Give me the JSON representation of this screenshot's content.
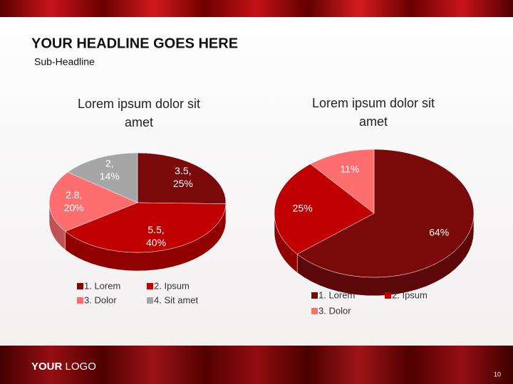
{
  "slide": {
    "headline": "YOUR HEADLINE GOES HERE",
    "subheadline": "Sub-Headline",
    "logo_your": "YOUR",
    "logo_logo": "LOGO",
    "page_number": "10"
  },
  "chart_data": [
    {
      "type": "pie",
      "title": "Lorem ipsum dolor sit amet",
      "categories": [
        "1. Lorem",
        "2. Ipsum",
        "3. Dolor",
        "4. Sit amet"
      ],
      "values": [
        3.5,
        5.5,
        2.8,
        2
      ],
      "value_labels": [
        "3.5, 25%",
        "5.5, 40%",
        "2.8, 20%",
        "2, 14%"
      ],
      "colors": [
        "#7a0a0a",
        "#c00000",
        "#ff6e6e",
        "#a6a6a6"
      ],
      "legend": "bottom"
    },
    {
      "type": "pie",
      "title": "Lorem ipsum dolor sit amet",
      "categories": [
        "1. Lorem",
        "2. Ipsum",
        "3. Dolor"
      ],
      "values": [
        64,
        25,
        11
      ],
      "value_labels": [
        "64%",
        "25%",
        "11%"
      ],
      "colors": [
        "#7a0a0a",
        "#c00000",
        "#ff6e6e"
      ],
      "legend": "bottom"
    }
  ]
}
